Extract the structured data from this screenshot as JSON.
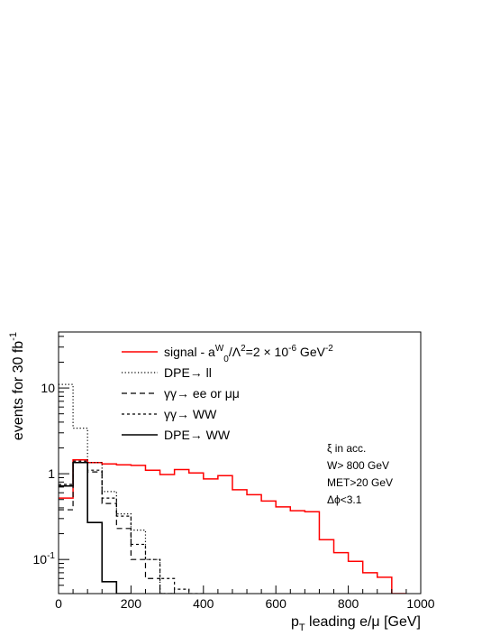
{
  "chart_data": {
    "type": "histogram",
    "xlabel_main": "p",
    "xlabel_sub": "T",
    "xlabel_rest": " leading e/μ [GeV]",
    "ylabel_main": "events for 30 fb",
    "ylabel_sup": "-1",
    "xlim": [
      0,
      1000
    ],
    "ylim": [
      0.04,
      45
    ],
    "yscale": "log",
    "x_ticks": [
      {
        "value": 0,
        "label": "0"
      },
      {
        "value": 200,
        "label": "200"
      },
      {
        "value": 400,
        "label": "400"
      },
      {
        "value": 600,
        "label": "600"
      },
      {
        "value": 800,
        "label": "800"
      },
      {
        "value": 1000,
        "label": "1000"
      }
    ],
    "y_ticks": [
      {
        "value": 0.1,
        "label": "10",
        "sup": "-1"
      },
      {
        "value": 1,
        "label": "1",
        "sup": ""
      },
      {
        "value": 10,
        "label": "10",
        "sup": ""
      }
    ],
    "bin_width": 40,
    "series": [
      {
        "key": "signal",
        "label_parts": [
          {
            "t": "signal - a"
          },
          {
            "t": "W",
            "shift": "sup"
          },
          {
            "t": "0",
            "shift": "sub"
          },
          {
            "t": "/Λ"
          },
          {
            "t": "2",
            "shift": "sup"
          },
          {
            "t": "=2 × 10"
          },
          {
            "t": "-6",
            "shift": "sup"
          },
          {
            "t": " GeV"
          },
          {
            "t": "-2",
            "shift": "sup"
          }
        ],
        "color": "#ff0000",
        "style": "solid",
        "width": 1.5,
        "x_start": 0,
        "values": [
          0.52,
          1.45,
          1.35,
          1.3,
          1.27,
          1.25,
          1.1,
          0.98,
          1.12,
          1.02,
          0.87,
          0.95,
          0.65,
          0.57,
          0.48,
          0.41,
          0.37,
          0.36,
          0.17,
          0.12,
          0.095,
          0.07,
          0.062,
          0.04
        ]
      },
      {
        "key": "dpe_ll",
        "label_parts": [
          {
            "t": "DPE→ ll"
          }
        ],
        "color": "#000000",
        "style": "dotted",
        "width": 1.2,
        "x_start": 0,
        "values": [
          11.0,
          3.4,
          1.35,
          0.62,
          0.34,
          0.22,
          0.1,
          0.04
        ]
      },
      {
        "key": "gg_ee",
        "label_parts": [
          {
            "t": "γγ→ ee or μμ"
          }
        ],
        "color": "#000000",
        "style": "dashed",
        "width": 1.2,
        "x_start": 0,
        "values": [
          0.38,
          1.35,
          1.05,
          0.45,
          0.23,
          0.1,
          0.06,
          0.04
        ]
      },
      {
        "key": "gg_ww",
        "label_parts": [
          {
            "t": "γγ→ WW"
          }
        ],
        "color": "#000000",
        "style": "dotdash",
        "width": 1.2,
        "x_start": 0,
        "values": [
          0.75,
          1.4,
          1.1,
          0.52,
          0.32,
          0.15,
          0.1,
          0.06,
          0.045,
          0.04
        ]
      },
      {
        "key": "dpe_ww",
        "label_parts": [
          {
            "t": "DPE→ WW"
          }
        ],
        "color": "#000000",
        "style": "solid",
        "width": 1.6,
        "x_start": 0,
        "values": [
          0.72,
          1.35,
          0.27,
          0.055,
          0.04
        ]
      }
    ],
    "annotations": [
      "ξ in acc.",
      "W> 800 GeV",
      "MET>20 GeV",
      "Δϕ<3.1"
    ]
  }
}
